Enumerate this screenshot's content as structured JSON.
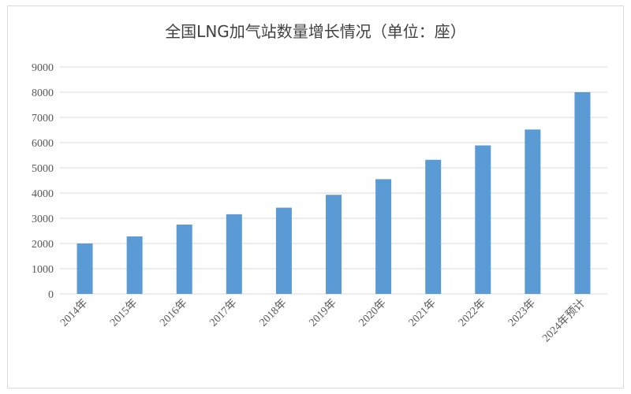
{
  "chart_data": {
    "type": "bar",
    "title": "全国LNG加气站数量增长情况（单位：座）",
    "categories": [
      "2014年",
      "2015年",
      "2016年",
      "2017年",
      "2018年",
      "2019年",
      "2020年",
      "2021年",
      "2022年",
      "2023年",
      "2024年预计"
    ],
    "values": [
      2000,
      2280,
      2750,
      3160,
      3420,
      3930,
      4550,
      5320,
      5890,
      6520,
      8000
    ],
    "ylim": [
      0,
      9000
    ],
    "yticks": [
      0,
      1000,
      2000,
      3000,
      4000,
      5000,
      6000,
      7000,
      8000,
      9000
    ],
    "xlabel": "",
    "ylabel": "",
    "grid": true,
    "bar_color": "#5b9bd5",
    "legend": "none"
  }
}
